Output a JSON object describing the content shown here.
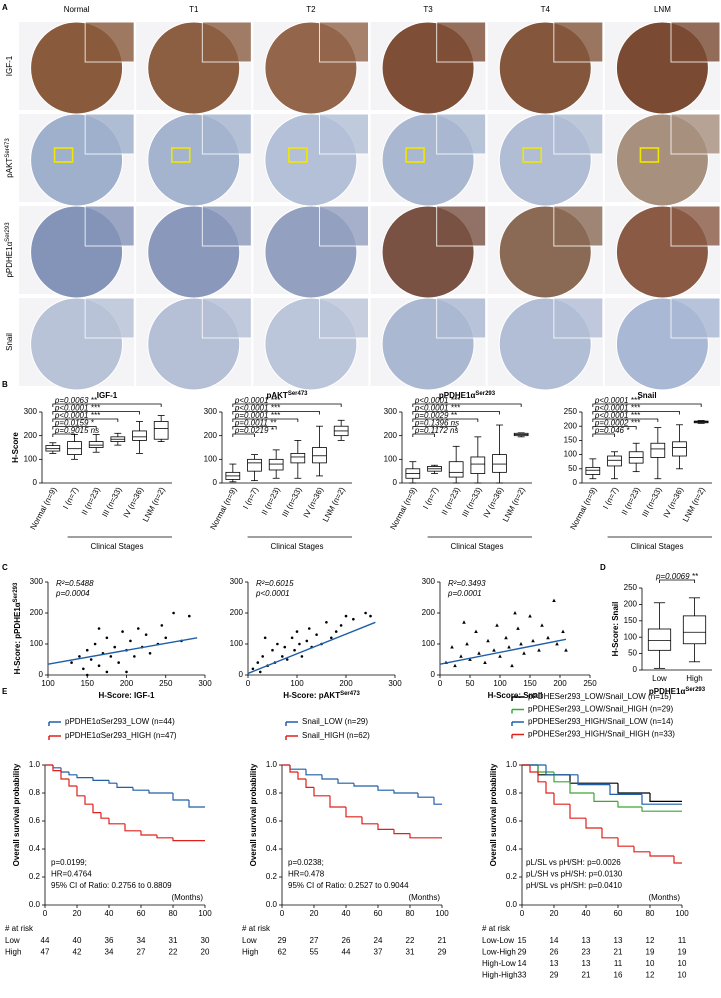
{
  "panel_labels": [
    "A",
    "B",
    "C",
    "D",
    "E"
  ],
  "panel_a": {
    "columns": [
      "Normal",
      "T1",
      "T2",
      "T3",
      "T4",
      "LNM"
    ],
    "rows": [
      {
        "text": "IGF-1"
      },
      {
        "text": "pAKT",
        "sup": "Ser473"
      },
      {
        "text": "pPDHE1α",
        "sup": "Ser293"
      },
      {
        "text": "Snail"
      }
    ]
  },
  "chart_data": [
    {
      "type": "box",
      "title": "IGF-1",
      "categories": [
        "Normal (n=9)",
        "I (n=7)",
        "II (n=23)",
        "III (n=33)",
        "IV (n=36)",
        "LNM (n=2)"
      ],
      "values": [
        [
          125,
          135,
          145,
          158,
          170
        ],
        [
          100,
          120,
          145,
          175,
          205
        ],
        [
          130,
          150,
          160,
          175,
          205
        ],
        [
          160,
          175,
          185,
          195,
          210
        ],
        [
          125,
          180,
          195,
          220,
          260
        ],
        [
          175,
          185,
          230,
          260,
          285
        ]
      ],
      "xlabel": "Clinical Stages",
      "ylabel": "H-Score",
      "ylim": [
        0,
        300
      ],
      "yticks": [
        0,
        100,
        200,
        300
      ],
      "annotations": [
        "p=0.9015 ns",
        "p=0.0159 *",
        "p<0.0001 ***",
        "p<0.0001 ***",
        "p=0.0063 **"
      ],
      "color": "#000000"
    },
    {
      "type": "box",
      "title": "pAKT",
      "title_sup": "Ser473",
      "categories": [
        "Normal (n=9)",
        "I (n=7)",
        "II (n=23)",
        "III (n=33)",
        "IV (n=36)",
        "LNM (n=2)"
      ],
      "values": [
        [
          5,
          15,
          30,
          45,
          80
        ],
        [
          10,
          50,
          85,
          100,
          120
        ],
        [
          20,
          55,
          80,
          100,
          140
        ],
        [
          20,
          85,
          110,
          125,
          180
        ],
        [
          30,
          85,
          115,
          150,
          240
        ],
        [
          180,
          200,
          220,
          240,
          265
        ]
      ],
      "xlabel": "Clinical Stages",
      "ylim": [
        0,
        300
      ],
      "yticks": [
        0,
        100,
        200,
        300
      ],
      "annotations": [
        "p=0.0219 *",
        "p=0.0011 **",
        "p=0.0001 ***",
        "p<0.0001 ***",
        "p<0.0001 ***"
      ],
      "color": "#000000"
    },
    {
      "type": "box",
      "title": "pPDHE1α",
      "title_sup": "Ser293",
      "categories": [
        "Normal (n=9)",
        "I (n=7)",
        "II (n=23)",
        "III (n=33)",
        "IV (n=36)",
        "LNM (n=2)"
      ],
      "values": [
        [
          0,
          20,
          40,
          60,
          90
        ],
        [
          40,
          50,
          60,
          70,
          75
        ],
        [
          0,
          25,
          45,
          90,
          155
        ],
        [
          0,
          40,
          80,
          110,
          195
        ],
        [
          0,
          45,
          80,
          120,
          245
        ],
        [
          195,
          200,
          205,
          210,
          212
        ]
      ],
      "xlabel": "Clinical Stages",
      "ylim": [
        0,
        300
      ],
      "yticks": [
        0,
        100,
        200,
        300
      ],
      "annotations": [
        "p=0.1172 ns",
        "p=0.1396 ns",
        "p=0.0029 **",
        "p<0.0001 ***",
        "p<0.0001 ***"
      ],
      "color": "#000000"
    },
    {
      "type": "box",
      "title": "Snail",
      "categories": [
        "Normal (n=9)",
        "I (n=7)",
        "II (n=23)",
        "III (n=33)",
        "IV (n=36)",
        "LNM (n=2)"
      ],
      "values": [
        [
          15,
          30,
          45,
          55,
          85
        ],
        [
          15,
          60,
          80,
          95,
          110
        ],
        [
          40,
          70,
          90,
          110,
          140
        ],
        [
          15,
          90,
          120,
          140,
          195
        ],
        [
          50,
          95,
          125,
          145,
          205
        ],
        [
          210,
          212,
          215,
          218,
          220
        ]
      ],
      "xlabel": "Clinical Stages",
      "ylim": [
        0,
        250
      ],
      "yticks": [
        0,
        50,
        100,
        150,
        200,
        250
      ],
      "annotations": [
        "p=0.046 *",
        "p=0.0002 ***",
        "p<0.0001 ***",
        "p<0.0001 ***",
        "p<0.0001 ***"
      ],
      "color": "#000000"
    },
    {
      "type": "scatter",
      "x": [
        130,
        140,
        145,
        150,
        155,
        160,
        165,
        170,
        175,
        180,
        185,
        190,
        195,
        200,
        205,
        210,
        215,
        220,
        225,
        230,
        240,
        245,
        250,
        260,
        270,
        280,
        150,
        175,
        200,
        165
      ],
      "values": [
        40,
        60,
        20,
        80,
        50,
        100,
        30,
        70,
        120,
        60,
        90,
        40,
        140,
        80,
        110,
        60,
        150,
        90,
        130,
        70,
        100,
        160,
        120,
        200,
        110,
        190,
        0,
        10,
        10,
        150
      ],
      "fit_x": [
        100,
        290
      ],
      "fit_y": [
        35,
        120
      ],
      "xlim": [
        100,
        300
      ],
      "xticks": [
        100,
        150,
        200,
        250,
        300
      ],
      "ylim": [
        0,
        300
      ],
      "yticks": [
        0,
        100,
        200,
        300
      ],
      "xlabel": "H-Score: IGF-1",
      "ylabel": "H-Score: pPDHE1α",
      "ylabel_sup": "Ser293",
      "annotations": [
        "R²=0.5488",
        "p=0.0004"
      ],
      "marker": "dot",
      "color": "#000000",
      "line_color": "#1f5fa8"
    },
    {
      "type": "scatter",
      "x": [
        10,
        20,
        25,
        30,
        40,
        50,
        55,
        60,
        70,
        75,
        80,
        90,
        95,
        100,
        105,
        110,
        120,
        125,
        130,
        140,
        150,
        160,
        170,
        180,
        190,
        200,
        215,
        240,
        250,
        35
      ],
      "values": [
        20,
        40,
        10,
        60,
        30,
        80,
        40,
        100,
        60,
        90,
        50,
        120,
        80,
        140,
        100,
        60,
        110,
        150,
        90,
        130,
        100,
        170,
        120,
        140,
        160,
        190,
        180,
        200,
        190,
        120
      ],
      "fit_x": [
        0,
        260
      ],
      "fit_y": [
        5,
        170
      ],
      "xlim": [
        0,
        300
      ],
      "xticks": [
        0,
        100,
        200,
        300
      ],
      "ylim": [
        0,
        300
      ],
      "yticks": [
        0,
        100,
        200,
        300
      ],
      "xlabel": "H-Score: pAKT",
      "xlabel_sup": "Ser473",
      "annotations": [
        "R²=0.6015",
        "p<0.0001"
      ],
      "marker": "dot",
      "color": "#000000",
      "line_color": "#1f5fa8"
    },
    {
      "type": "scatter",
      "x": [
        10,
        20,
        25,
        35,
        45,
        50,
        60,
        65,
        75,
        80,
        90,
        95,
        100,
        110,
        115,
        120,
        130,
        135,
        140,
        150,
        155,
        165,
        170,
        180,
        190,
        195,
        205,
        210,
        40,
        125
      ],
      "values": [
        40,
        90,
        30,
        60,
        100,
        50,
        140,
        70,
        40,
        110,
        80,
        160,
        60,
        120,
        90,
        30,
        150,
        100,
        70,
        190,
        110,
        80,
        160,
        120,
        240,
        100,
        140,
        80,
        170,
        200
      ],
      "fit_x": [
        0,
        210
      ],
      "fit_y": [
        35,
        115
      ],
      "xlim": [
        0,
        250
      ],
      "xticks": [
        0,
        50,
        100,
        150,
        200,
        250
      ],
      "ylim": [
        0,
        300
      ],
      "yticks": [
        0,
        100,
        200,
        300
      ],
      "xlabel": "H-Score: Snail",
      "annotations": [
        "R²=0.3493",
        "p=0.0001"
      ],
      "marker": "triangle",
      "color": "#000000",
      "line_color": "#1f5fa8"
    },
    {
      "type": "box",
      "categories": [
        "Low",
        "High"
      ],
      "values": [
        [
          5,
          60,
          90,
          125,
          205
        ],
        [
          25,
          80,
          115,
          165,
          220
        ]
      ],
      "xlabel": "pPDHE1α",
      "xlabel_sup": "Ser293",
      "ylabel": "H-Score: Snail",
      "ylim": [
        0,
        250
      ],
      "yticks": [
        0,
        50,
        100,
        150,
        200,
        250
      ],
      "annotations": [
        "p=0.0069 **"
      ],
      "color": "#000000"
    },
    {
      "type": "step",
      "series": [
        {
          "name": "pPDHE1αSer293_LOW (n=44)",
          "color": "#1f5fa8",
          "x": [
            0,
            5,
            10,
            15,
            20,
            30,
            40,
            45,
            55,
            65,
            80,
            90,
            100
          ],
          "values": [
            1,
            0.98,
            0.95,
            0.93,
            0.91,
            0.89,
            0.87,
            0.84,
            0.82,
            0.8,
            0.75,
            0.7,
            0.7
          ]
        },
        {
          "name": "pPDHE1αSer293_HIGH (n=47)",
          "color": "#e0201b",
          "x": [
            0,
            5,
            10,
            15,
            20,
            25,
            30,
            35,
            40,
            50,
            60,
            70,
            80,
            100
          ],
          "values": [
            1,
            0.96,
            0.9,
            0.85,
            0.78,
            0.72,
            0.66,
            0.62,
            0.58,
            0.53,
            0.5,
            0.48,
            0.46,
            0.46
          ]
        }
      ],
      "xlim": [
        0,
        100
      ],
      "xticks": [
        0,
        20,
        40,
        60,
        80,
        100
      ],
      "ylim": [
        0,
        1
      ],
      "yticks": [
        {
          "value": 0,
          "label": "0.0"
        },
        0.2,
        0.4,
        0.6,
        0.8,
        {
          "value": 1,
          "label": "1.0"
        }
      ],
      "ylabel": "Overall survival probability",
      "xlabel": "(Months)",
      "annotations": [
        "p=0.0199;",
        "HR=0.4764",
        "95% CI of Ratio: 0.2756 to 0.8809"
      ],
      "at_risk": {
        "label": "# at risk",
        "rows": [
          {
            "name": "Low",
            "color": "#1f5fa8",
            "values": [
              44,
              40,
              36,
              34,
              31,
              30
            ]
          },
          {
            "name": "High",
            "color": "#e0201b",
            "values": [
              47,
              42,
              34,
              27,
              22,
              20
            ]
          }
        ]
      }
    },
    {
      "type": "step",
      "series": [
        {
          "name": "Snail_LOW (n=29)",
          "color": "#1f5fa8",
          "x": [
            0,
            5,
            15,
            25,
            35,
            45,
            60,
            70,
            85,
            95,
            100
          ],
          "values": [
            1,
            0.97,
            0.93,
            0.9,
            0.87,
            0.85,
            0.82,
            0.8,
            0.77,
            0.72,
            0.72
          ]
        },
        {
          "name": "Snail_HIGH (n=62)",
          "color": "#e0201b",
          "x": [
            0,
            5,
            10,
            15,
            20,
            30,
            40,
            50,
            60,
            70,
            80,
            100
          ],
          "values": [
            1,
            0.95,
            0.9,
            0.84,
            0.78,
            0.7,
            0.63,
            0.58,
            0.54,
            0.51,
            0.48,
            0.48
          ]
        }
      ],
      "xlim": [
        0,
        100
      ],
      "xticks": [
        0,
        20,
        40,
        60,
        80,
        100
      ],
      "ylim": [
        0,
        1
      ],
      "yticks": [
        {
          "value": 0,
          "label": "0.0"
        },
        0.2,
        0.4,
        0.6,
        0.8,
        {
          "value": 1,
          "label": "1.0"
        }
      ],
      "ylabel": "Overall survival probability",
      "xlabel": "(Months)",
      "annotations": [
        "p=0.0238;",
        "HR=0.478",
        "95% CI of Ratio: 0.2527 to 0.9044"
      ],
      "at_risk": {
        "label": "# at risk",
        "rows": [
          {
            "name": "Low",
            "color": "#1f5fa8",
            "values": [
              29,
              27,
              26,
              24,
              22,
              21
            ]
          },
          {
            "name": "High",
            "color": "#e0201b",
            "values": [
              62,
              55,
              44,
              37,
              31,
              29
            ]
          }
        ]
      }
    },
    {
      "type": "step",
      "series": [
        {
          "name": "pPDHESer293_LOW/Snail_LOW (n=15)",
          "color": "#000000",
          "x": [
            0,
            10,
            30,
            60,
            80,
            100
          ],
          "values": [
            1,
            0.93,
            0.87,
            0.8,
            0.74,
            0.74
          ]
        },
        {
          "name": "pPDHESer293_LOW/Snail_HIGH (n=29)",
          "color": "#3aa832",
          "x": [
            0,
            10,
            20,
            30,
            45,
            60,
            75,
            100
          ],
          "values": [
            1,
            0.95,
            0.88,
            0.8,
            0.74,
            0.7,
            0.67,
            0.67
          ]
        },
        {
          "name": "pPDHESer293_HIGH/Snail_LOW (n=14)",
          "color": "#1f5fa8",
          "x": [
            0,
            15,
            35,
            55,
            75,
            100
          ],
          "values": [
            1,
            0.93,
            0.86,
            0.79,
            0.72,
            0.72
          ]
        },
        {
          "name": "pPDHESer293_HIGH/Snail_HIGH (n=33)",
          "color": "#e0201b",
          "x": [
            0,
            5,
            10,
            15,
            20,
            30,
            40,
            50,
            60,
            70,
            80,
            95,
            100
          ],
          "values": [
            1,
            0.95,
            0.88,
            0.8,
            0.72,
            0.62,
            0.55,
            0.48,
            0.42,
            0.38,
            0.35,
            0.3,
            0.3
          ]
        }
      ],
      "xlim": [
        0,
        100
      ],
      "xticks": [
        0,
        20,
        40,
        60,
        80,
        100
      ],
      "ylim": [
        0,
        1
      ],
      "yticks": [
        {
          "value": 0,
          "label": "0.0"
        },
        0.2,
        0.4,
        0.6,
        0.8,
        {
          "value": 1,
          "label": "1.0"
        }
      ],
      "ylabel": "Overall survival probability",
      "xlabel": "(Months)",
      "annotations": [
        "pL/SL vs pH/SH: p=0.0026",
        "pL/SH vs pH/SH: p=0.0130",
        "pH/SL vs pH/SH: p=0.0410"
      ],
      "at_risk": {
        "label": "# at risk",
        "rows": [
          {
            "name": "Low-Low",
            "color": "#000000",
            "values": [
              15,
              14,
              13,
              13,
              12,
              11
            ]
          },
          {
            "name": "Low-High",
            "color": "#3aa832",
            "values": [
              29,
              26,
              23,
              21,
              19,
              19
            ]
          },
          {
            "name": "High-Low",
            "color": "#1f5fa8",
            "values": [
              14,
              13,
              13,
              11,
              10,
              10
            ]
          },
          {
            "name": "High-High",
            "color": "#e0201b",
            "values": [
              33,
              29,
              21,
              16,
              12,
              10
            ]
          }
        ]
      }
    }
  ]
}
